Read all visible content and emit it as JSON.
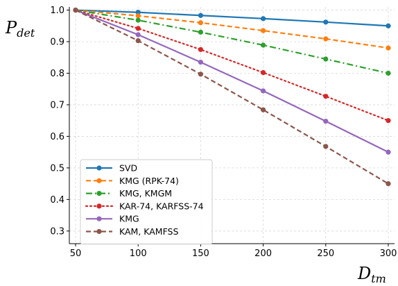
{
  "chart_data": {
    "type": "line",
    "ylabel_main": "P",
    "ylabel_sub": "det",
    "xlabel_main": "D",
    "xlabel_sub": "tm",
    "x": [
      50,
      100,
      150,
      200,
      250,
      300
    ],
    "xlim": [
      45,
      305
    ],
    "ylim": [
      0.26,
      1.01
    ],
    "xticks": [
      50,
      100,
      150,
      200,
      250,
      300
    ],
    "yticks": [
      0.3,
      0.4,
      0.5,
      0.6,
      0.7,
      0.8,
      0.9,
      1.0
    ],
    "ytick_labels": [
      "0.3",
      "0.4",
      "0.5",
      "0.6",
      "0.7",
      "0.8",
      "0.9",
      "1.0"
    ],
    "grid": true,
    "legend_position": "lower-left",
    "series": [
      {
        "name": "SVD",
        "color": "#1f77b4",
        "dash": "solid",
        "values": [
          1.0,
          0.993,
          0.983,
          0.973,
          0.962,
          0.95
        ]
      },
      {
        "name": "KMG (RPK-74)",
        "color": "#ff7f0e",
        "dash": "dashed",
        "values": [
          1.0,
          0.982,
          0.96,
          0.935,
          0.909,
          0.88
        ]
      },
      {
        "name": "KMG, KMGM",
        "color": "#2ca02c",
        "dash": "dashdot",
        "values": [
          1.0,
          0.968,
          0.93,
          0.889,
          0.845,
          0.8
        ]
      },
      {
        "name": "KAR-74, KARFSS-74",
        "color": "#d62728",
        "dash": "dotted",
        "values": [
          1.0,
          0.942,
          0.875,
          0.802,
          0.727,
          0.65
        ]
      },
      {
        "name": "KMG",
        "color": "#9467bd",
        "dash": "solid",
        "values": [
          1.0,
          0.922,
          0.835,
          0.744,
          0.648,
          0.55
        ]
      },
      {
        "name": "KAM, KAMFSS",
        "color": "#8c564b",
        "dash": "dashed",
        "values": [
          1.0,
          0.903,
          0.797,
          0.684,
          0.568,
          0.45
        ]
      }
    ]
  }
}
